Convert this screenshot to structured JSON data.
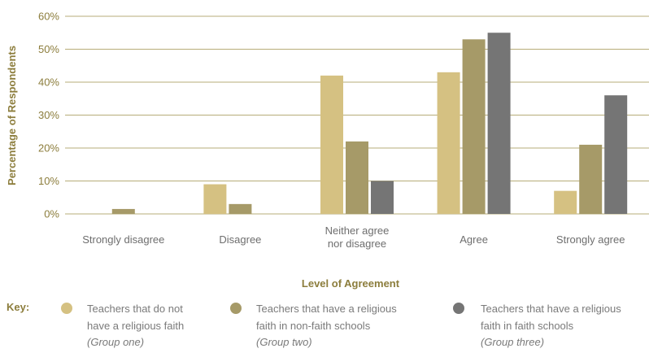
{
  "chart_data": {
    "type": "bar",
    "xlabel": "Level of Agreement",
    "ylabel": "Percentage of Respondents",
    "ylim": [
      0,
      60
    ],
    "yticks": [
      "0%",
      "10%",
      "20%",
      "30%",
      "40%",
      "50%",
      "60%"
    ],
    "categories": [
      [
        "Strongly disagree"
      ],
      [
        "Disagree"
      ],
      [
        "Neither agree",
        "nor disagree"
      ],
      [
        "Agree"
      ],
      [
        "Strongly agree"
      ]
    ],
    "series": [
      {
        "name": "Teachers that do not have a religious faith (Group one)",
        "color": "#d5c182",
        "values": [
          0,
          9,
          42,
          43,
          7
        ]
      },
      {
        "name": "Teachers that have a religious faith in non-faith schools (Group two)",
        "color": "#a69a68",
        "values": [
          1.5,
          3,
          22,
          53,
          21
        ]
      },
      {
        "name": "Teachers that have a religious faith in faith schools (Group three)",
        "color": "#757575",
        "values": [
          0,
          0,
          10,
          55,
          36
        ]
      }
    ],
    "grid": true
  },
  "legend": {
    "key_label": "Key:",
    "items": [
      {
        "line1": "Teachers that do not",
        "line2": "have a religious faith",
        "group": "(Group one)",
        "color": "#d5c182"
      },
      {
        "line1": "Teachers that have a religious",
        "line2": "faith in non-faith schools",
        "group": "(Group two)",
        "color": "#a69a68"
      },
      {
        "line1": "Teachers that have a religious",
        "line2": "faith in faith schools",
        "group": "(Group three)",
        "color": "#757575"
      }
    ]
  }
}
